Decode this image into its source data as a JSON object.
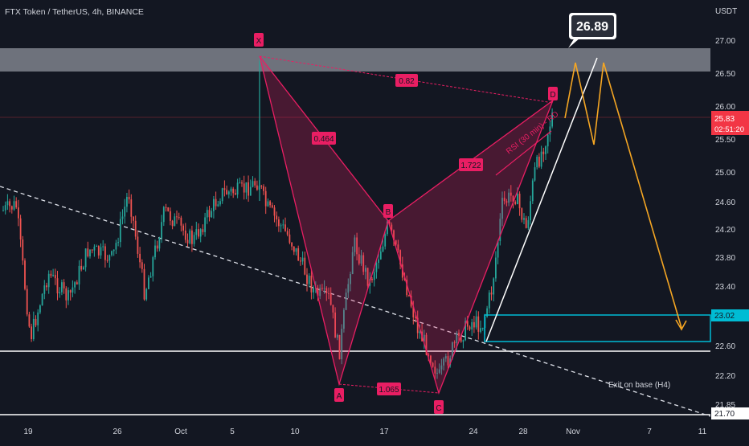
{
  "header": {
    "title": "FTX Token / TetherUS, 4h, BINANCE",
    "currency": "USDT"
  },
  "price_badge": {
    "price": "25.83",
    "timer": "02:51:20",
    "color": "#f23645"
  },
  "callout": {
    "text": "26.89"
  },
  "zones": {
    "resistance_label": "",
    "target_level": "23.02"
  },
  "annotations": {
    "rsi": "RSI (30 min) - RD",
    "exit": "Exit on base (H4)",
    "support_price": "21.70"
  },
  "pattern": {
    "color": "#e91e63",
    "points": {
      "X": "X",
      "A": "A",
      "B": "B",
      "C": "C",
      "D": "D"
    },
    "ratios": {
      "xa": "0.464",
      "ab": "1.065",
      "xd": "0.82",
      "bd": "1.722"
    }
  },
  "colors": {
    "up": "#26a69a",
    "down": "#ef5350",
    "projection": "#f5a623",
    "cyan": "#00bcd4"
  },
  "chart_data": {
    "type": "candlestick",
    "title": "FTX Token / TetherUS, 4h, BINANCE",
    "yaxis_ticks": [
      "27.00",
      "26.50",
      "26.00",
      "25.50",
      "25.00",
      "24.60",
      "24.20",
      "23.80",
      "23.40",
      "22.60",
      "22.20",
      "21.85"
    ],
    "xaxis_ticks": [
      "19",
      "26",
      "Oct",
      "5",
      "10",
      "17",
      "24",
      "28",
      "Nov",
      "7",
      "11"
    ],
    "last_price": 25.83,
    "harmonic_points": [
      {
        "name": "X",
        "date": "Oct 7",
        "price": 26.7
      },
      {
        "name": "A",
        "date": "Oct 13",
        "price": 22.1
      },
      {
        "name": "B",
        "date": "Oct 17",
        "price": 24.3
      },
      {
        "name": "C",
        "date": "Oct 22",
        "price": 21.9
      },
      {
        "name": "D",
        "date": "Oct 30",
        "price": 26.0
      }
    ],
    "projection_path": [
      {
        "date": "Oct 31",
        "price": 25.8
      },
      {
        "date": "Nov 1",
        "price": 26.7
      },
      {
        "date": "Nov 2",
        "price": 25.4
      },
      {
        "date": "Nov 3",
        "price": 26.7
      },
      {
        "date": "Nov 9",
        "price": 22.9
      }
    ]
  }
}
